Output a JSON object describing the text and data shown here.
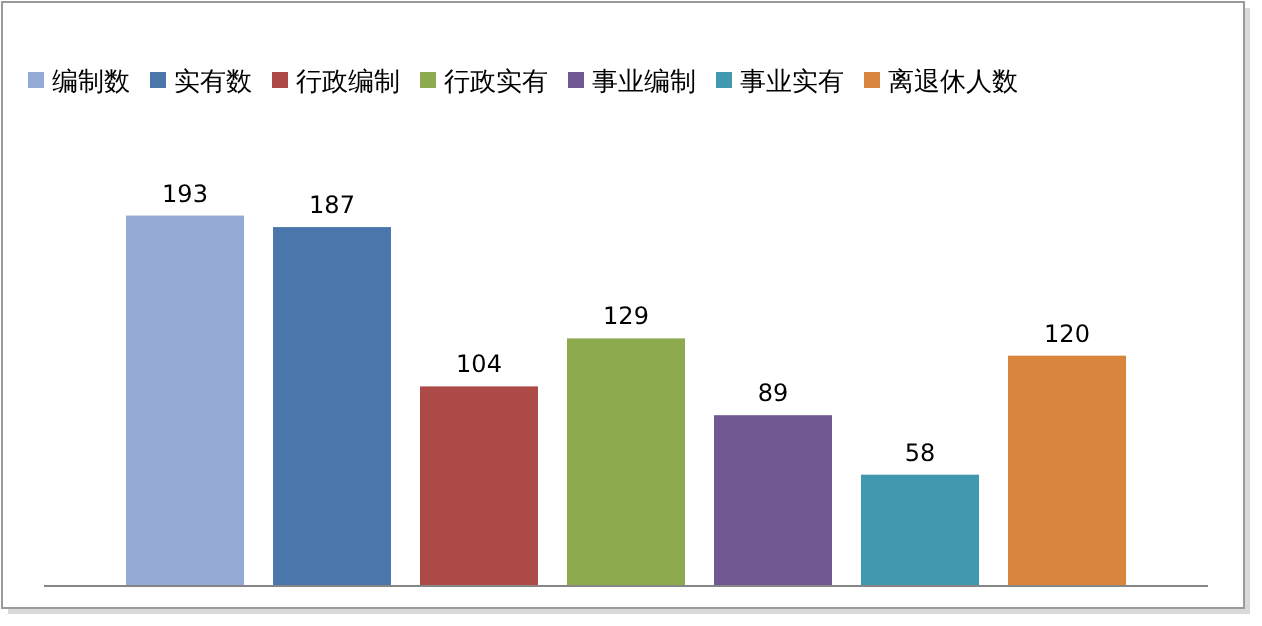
{
  "chart_data": {
    "type": "bar",
    "categories": [
      null
    ],
    "data_labels": true,
    "legend": "top",
    "series": [
      {
        "name": "编制数",
        "color": "#95abd5",
        "values": [
          193
        ]
      },
      {
        "name": "实有数",
        "color": "#4a76ab",
        "values": [
          187
        ]
      },
      {
        "name": "行政编制",
        "color": "#ac4a47",
        "values": [
          104
        ]
      },
      {
        "name": "行政实有",
        "color": "#8daa4f",
        "values": [
          129
        ]
      },
      {
        "name": "事业编制",
        "color": "#725892",
        "values": [
          89
        ]
      },
      {
        "name": "事业实有",
        "color": "#4199af",
        "values": [
          58
        ]
      },
      {
        "name": "离退休人数",
        "color": "#da853d",
        "values": [
          120
        ]
      }
    ]
  }
}
